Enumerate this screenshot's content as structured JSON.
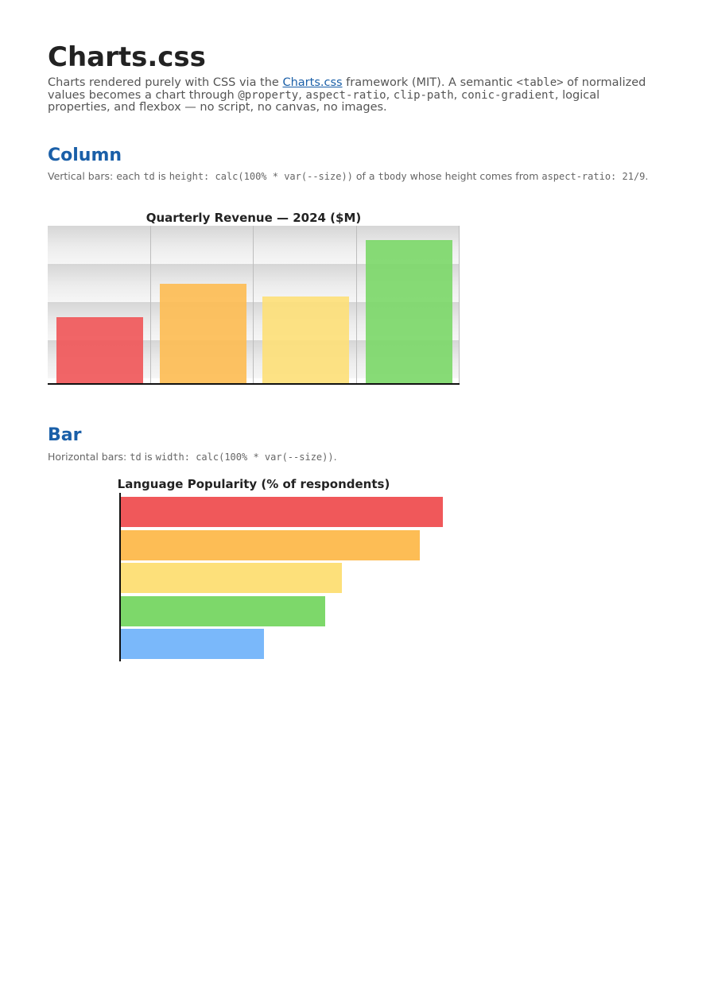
{
  "page": {
    "title": "Charts.css",
    "intro": {
      "before_link": "Charts rendered purely with CSS via the ",
      "link_text": "Charts.css",
      "after_link": " framework (MIT). A semantic ",
      "code_table": "<table>",
      "after_table": " of normalized values becomes a chart through ",
      "code_property": "@property",
      "sep1": ", ",
      "code_aspect": "aspect-ratio",
      "sep2": ", ",
      "code_clip": "clip-path",
      "sep3": ", ",
      "code_conic": "conic-gradient",
      "tail": ", logical properties, and flexbox — no script, no canvas, no images."
    }
  },
  "column_section": {
    "heading": "Column",
    "desc": {
      "t1": "Vertical bars: each ",
      "c1": "td",
      "t2": " is ",
      "c2": "height: calc(100% * var(--size))",
      "t3": " of a ",
      "c3": "tbody",
      "t4": " whose height comes from ",
      "c4": "aspect-ratio: 21/9",
      "t5": "."
    }
  },
  "bar_section": {
    "heading": "Bar",
    "desc": {
      "t1": "Horizontal bars: ",
      "c1": "td",
      "t2": " is ",
      "c2": "width: calc(100% * var(--size))",
      "t3": "."
    }
  },
  "colors": {
    "red": "#f0585a",
    "orange": "#fdbd55",
    "yellow": "#fde07a",
    "green": "#7dd86a",
    "blue": "#7ab8fa"
  },
  "chart_data": [
    {
      "type": "bar",
      "orientation": "vertical",
      "title": "Quarterly Revenue — 2024 ($M)",
      "categories": [
        "",
        "",
        "",
        ""
      ],
      "values": [
        0.42,
        0.63,
        0.55,
        0.91
      ],
      "ylim": [
        0,
        1
      ],
      "grid": true,
      "colors": [
        "#f0585a",
        "#fdbd55",
        "#fde07a",
        "#7dd86a"
      ]
    },
    {
      "type": "bar",
      "orientation": "horizontal",
      "title": "Language Popularity (% of respondents)",
      "categories": [
        "",
        "",
        "",
        "",
        ""
      ],
      "values": [
        0.97,
        0.9,
        0.665,
        0.615,
        0.43
      ],
      "xlim": [
        0,
        1
      ],
      "grid": false,
      "colors": [
        "#f0585a",
        "#fdbd55",
        "#fde07a",
        "#7dd86a",
        "#7ab8fa"
      ]
    }
  ]
}
